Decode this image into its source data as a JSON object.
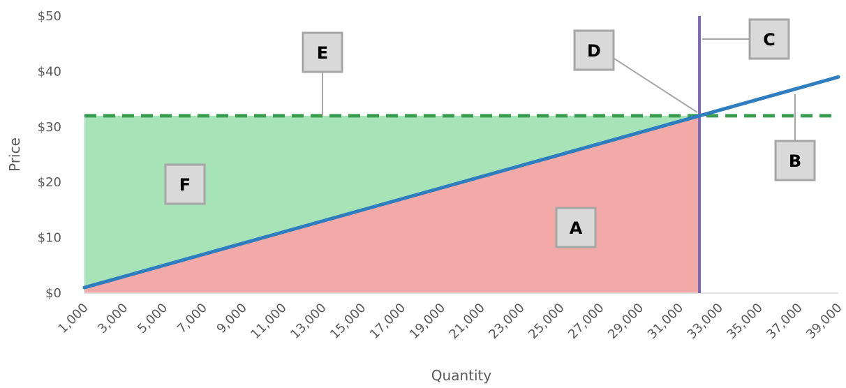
{
  "chart_data": {
    "type": "line",
    "xlabel": "Quantity",
    "ylabel": "Price",
    "xlim": [
      1000,
      39000
    ],
    "ylim": [
      0,
      50
    ],
    "x_ticks": [
      1000,
      3000,
      5000,
      7000,
      9000,
      11000,
      13000,
      15000,
      17000,
      19000,
      21000,
      23000,
      25000,
      27000,
      29000,
      31000,
      33000,
      35000,
      37000,
      39000
    ],
    "x_tick_labels": [
      "1,000",
      "3,000",
      "5,000",
      "7,000",
      "9,000",
      "11,000",
      "13,000",
      "15,000",
      "17,000",
      "19,000",
      "21,000",
      "23,000",
      "25,000",
      "27,000",
      "29,000",
      "31,000",
      "33,000",
      "35,000",
      "37,000",
      "39,000"
    ],
    "y_ticks": [
      0,
      10,
      20,
      30,
      40,
      50
    ],
    "y_tick_labels": [
      "$0",
      "$10",
      "$20",
      "$30",
      "$40",
      "$50"
    ],
    "grid": false,
    "legend": "none",
    "series": [
      {
        "style": "solid",
        "color": "#2e7ebf",
        "x": [
          1000,
          39000
        ],
        "y": [
          1,
          39
        ]
      },
      {
        "style": "dashed",
        "color": "#3a9e50",
        "x": [
          1000,
          39000
        ],
        "y": [
          32,
          32
        ]
      }
    ],
    "vertical_line": {
      "x": 32000,
      "color": "#7b68b0"
    },
    "areas": [
      {
        "label": "A",
        "color": "#f2aaa8",
        "bounds": "between price 0 and the solid line, from 1,000 to 32,000"
      },
      {
        "label": "F",
        "color": "#a6e3b7",
        "bounds": "between the solid line and the dashed line, from 1,000 to 32,000"
      }
    ],
    "annotations": [
      {
        "label": "A",
        "points_to": "area below solid line"
      },
      {
        "label": "B",
        "points_to": "solid line"
      },
      {
        "label": "C",
        "points_to": "vertical line"
      },
      {
        "label": "D",
        "points_to": "intersection"
      },
      {
        "label": "E",
        "points_to": "dashed line"
      },
      {
        "label": "F",
        "points_to": "area above solid line"
      }
    ]
  }
}
